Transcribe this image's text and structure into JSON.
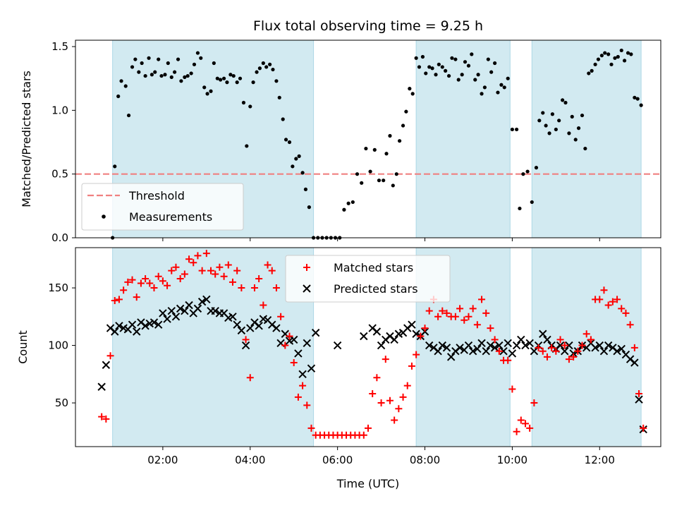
{
  "title": "Flux total observing time = 9.25 h",
  "x_axis": {
    "label": "Time (UTC)",
    "ticks": [
      2,
      4,
      6,
      8,
      10,
      12
    ],
    "tick_labels": [
      "02:00",
      "04:00",
      "06:00",
      "08:00",
      "10:00",
      "12:00"
    ]
  },
  "colors": {
    "shade": "#add8e6",
    "threshold": "#f08080",
    "matched": "#ff0000",
    "predicted": "#000000",
    "measurement": "#000000"
  },
  "chart_data": [
    {
      "type": "scatter",
      "panel": "top",
      "ylabel": "Matched/Predicted stars",
      "xlim": [
        0.0,
        13.4
      ],
      "ylim": [
        0.0,
        1.55
      ],
      "yticks": [
        0.0,
        0.5,
        1.0,
        1.5
      ],
      "ytick_labels": [
        "0.0",
        "0.5",
        "1.0",
        "1.5"
      ],
      "shaded_intervals": [
        [
          0.85,
          5.45
        ],
        [
          7.8,
          9.95
        ],
        [
          10.45,
          12.95
        ]
      ],
      "threshold": {
        "value": 0.5,
        "label": "Threshold",
        "style": "dashed"
      },
      "legend": {
        "position": "lower-left",
        "entries": [
          "Threshold",
          "Measurements"
        ]
      },
      "series": [
        {
          "name": "Measurements",
          "x": [
            0.85,
            0.9,
            0.98,
            1.05,
            1.15,
            1.22,
            1.3,
            1.37,
            1.45,
            1.52,
            1.6,
            1.68,
            1.75,
            1.82,
            1.9,
            1.97,
            2.05,
            2.12,
            2.2,
            2.27,
            2.35,
            2.42,
            2.5,
            2.57,
            2.65,
            2.72,
            2.8,
            2.87,
            2.95,
            3.02,
            3.1,
            3.17,
            3.25,
            3.32,
            3.4,
            3.47,
            3.55,
            3.62,
            3.7,
            3.77,
            3.85,
            3.92,
            4.0,
            4.07,
            4.15,
            4.22,
            4.3,
            4.37,
            4.45,
            4.52,
            4.6,
            4.67,
            4.75,
            4.82,
            4.9,
            4.97,
            5.05,
            5.12,
            5.2,
            5.27,
            5.35,
            5.45,
            5.55,
            5.65,
            5.75,
            5.85,
            5.95,
            6.05,
            6.15,
            6.25,
            6.35,
            6.45,
            6.55,
            6.65,
            6.75,
            6.85,
            6.95,
            7.05,
            7.12,
            7.2,
            7.27,
            7.35,
            7.42,
            7.5,
            7.57,
            7.65,
            7.72,
            7.8,
            7.87,
            7.95,
            8.02,
            8.1,
            8.17,
            8.25,
            8.32,
            8.4,
            8.47,
            8.55,
            8.62,
            8.7,
            8.77,
            8.85,
            8.92,
            9.0,
            9.07,
            9.15,
            9.22,
            9.3,
            9.37,
            9.45,
            9.52,
            9.6,
            9.67,
            9.75,
            9.82,
            9.9,
            10.0,
            10.1,
            10.17,
            10.25,
            10.35,
            10.45,
            10.55,
            10.62,
            10.7,
            10.77,
            10.85,
            10.92,
            11.0,
            11.07,
            11.15,
            11.22,
            11.3,
            11.37,
            11.45,
            11.52,
            11.6,
            11.67,
            11.75,
            11.82,
            11.9,
            11.97,
            12.05,
            12.12,
            12.2,
            12.27,
            12.35,
            12.42,
            12.5,
            12.57,
            12.65,
            12.72,
            12.8,
            12.87,
            12.95
          ],
          "values": [
            0.0,
            0.56,
            1.11,
            1.23,
            1.19,
            0.96,
            1.34,
            1.4,
            1.3,
            1.37,
            1.27,
            1.41,
            1.28,
            1.3,
            1.4,
            1.27,
            1.28,
            1.37,
            1.26,
            1.3,
            1.4,
            1.23,
            1.26,
            1.27,
            1.29,
            1.36,
            1.45,
            1.41,
            1.18,
            1.13,
            1.15,
            1.37,
            1.25,
            1.24,
            1.25,
            1.22,
            1.28,
            1.27,
            1.22,
            1.25,
            1.06,
            0.72,
            1.03,
            1.22,
            1.3,
            1.33,
            1.37,
            1.34,
            1.36,
            1.32,
            1.23,
            1.1,
            0.93,
            0.77,
            0.75,
            0.56,
            0.62,
            0.64,
            0.51,
            0.38,
            0.24,
            0.0,
            0.0,
            0.0,
            0.0,
            0.0,
            0.0,
            0.0,
            0.22,
            0.27,
            0.28,
            0.5,
            0.43,
            0.7,
            0.52,
            0.69,
            0.45,
            0.45,
            0.66,
            0.8,
            0.41,
            0.5,
            0.76,
            0.88,
            0.99,
            1.17,
            1.13,
            1.41,
            1.34,
            1.42,
            1.29,
            1.34,
            1.33,
            1.28,
            1.36,
            1.34,
            1.31,
            1.27,
            1.41,
            1.4,
            1.24,
            1.28,
            1.38,
            1.35,
            1.44,
            1.24,
            1.28,
            1.13,
            1.18,
            1.4,
            1.3,
            1.37,
            1.14,
            1.2,
            1.18,
            1.25,
            0.85,
            0.85,
            0.23,
            0.5,
            0.52,
            0.28,
            0.55,
            0.92,
            0.98,
            0.88,
            0.82,
            0.97,
            0.85,
            0.92,
            1.08,
            1.06,
            0.82,
            0.95,
            0.77,
            0.86,
            0.96,
            0.7,
            1.29,
            1.31,
            1.36,
            1.4,
            1.43,
            1.45,
            1.44,
            1.36,
            1.41,
            1.42,
            1.47,
            1.39,
            1.45,
            1.44,
            1.1,
            1.09,
            1.04
          ],
          "marker": "dot"
        }
      ]
    },
    {
      "type": "scatter",
      "panel": "bottom",
      "ylabel": "Count",
      "xlabel": "Time (UTC)",
      "xlim": [
        0.0,
        13.4
      ],
      "ylim": [
        12,
        185
      ],
      "yticks": [
        50,
        100,
        150
      ],
      "ytick_labels": [
        "50",
        "100",
        "150"
      ],
      "shaded_intervals": [
        [
          0.85,
          5.45
        ],
        [
          7.8,
          9.95
        ],
        [
          10.45,
          12.95
        ]
      ],
      "legend": {
        "position": "top-center",
        "entries": [
          "Matched stars",
          "Predicted stars"
        ]
      },
      "series": [
        {
          "name": "Matched stars",
          "marker": "plus",
          "x": [
            0.6,
            0.7,
            0.8,
            0.9,
            1.0,
            1.1,
            1.2,
            1.3,
            1.4,
            1.5,
            1.6,
            1.7,
            1.8,
            1.9,
            2.0,
            2.1,
            2.2,
            2.3,
            2.4,
            2.5,
            2.6,
            2.7,
            2.8,
            2.9,
            3.0,
            3.1,
            3.2,
            3.3,
            3.4,
            3.5,
            3.6,
            3.7,
            3.8,
            3.9,
            4.0,
            4.1,
            4.2,
            4.3,
            4.4,
            4.5,
            4.6,
            4.7,
            4.8,
            4.9,
            5.0,
            5.1,
            5.2,
            5.3,
            5.4,
            5.5,
            5.6,
            5.7,
            5.8,
            5.9,
            6.0,
            6.1,
            6.2,
            6.3,
            6.4,
            6.5,
            6.6,
            6.7,
            6.8,
            6.9,
            7.0,
            7.1,
            7.2,
            7.3,
            7.4,
            7.5,
            7.6,
            7.7,
            7.8,
            7.9,
            8.0,
            8.1,
            8.2,
            8.3,
            8.4,
            8.5,
            8.6,
            8.7,
            8.8,
            8.9,
            9.0,
            9.1,
            9.2,
            9.3,
            9.4,
            9.5,
            9.6,
            9.7,
            9.8,
            9.9,
            10.0,
            10.1,
            10.2,
            10.3,
            10.4,
            10.5,
            10.6,
            10.7,
            10.8,
            10.9,
            11.0,
            11.1,
            11.2,
            11.3,
            11.4,
            11.5,
            11.6,
            11.7,
            11.8,
            11.9,
            12.0,
            12.1,
            12.2,
            12.3,
            12.4,
            12.5,
            12.6,
            12.7,
            12.8,
            12.9,
            13.0
          ],
          "values": [
            38,
            36,
            91,
            139,
            140,
            148,
            155,
            157,
            142,
            154,
            158,
            154,
            150,
            160,
            156,
            152,
            165,
            168,
            158,
            162,
            175,
            172,
            178,
            165,
            180,
            165,
            162,
            168,
            160,
            170,
            155,
            165,
            150,
            105,
            72,
            150,
            158,
            135,
            170,
            165,
            150,
            125,
            100,
            108,
            85,
            55,
            65,
            48,
            28,
            22,
            22,
            22,
            22,
            22,
            22,
            22,
            22,
            22,
            22,
            22,
            22,
            28,
            58,
            72,
            50,
            88,
            52,
            35,
            45,
            55,
            65,
            82,
            92,
            108,
            115,
            130,
            140,
            125,
            130,
            128,
            125,
            125,
            132,
            122,
            125,
            132,
            118,
            140,
            128,
            115,
            105,
            95,
            87,
            87,
            62,
            25,
            35,
            32,
            28,
            50,
            98,
            95,
            90,
            98,
            95,
            105,
            100,
            88,
            90,
            95,
            100,
            110,
            105,
            140,
            140,
            148,
            135,
            138,
            140,
            132,
            128,
            118,
            98,
            58,
            28
          ]
        },
        {
          "name": "Predicted stars",
          "marker": "cross",
          "x": [
            0.6,
            0.7,
            0.8,
            0.9,
            1.0,
            1.1,
            1.2,
            1.3,
            1.4,
            1.5,
            1.6,
            1.7,
            1.8,
            1.9,
            2.0,
            2.1,
            2.2,
            2.3,
            2.4,
            2.5,
            2.6,
            2.7,
            2.8,
            2.9,
            3.0,
            3.1,
            3.2,
            3.3,
            3.4,
            3.5,
            3.6,
            3.7,
            3.8,
            3.9,
            4.0,
            4.1,
            4.2,
            4.3,
            4.4,
            4.5,
            4.6,
            4.7,
            4.8,
            4.9,
            5.0,
            5.1,
            5.2,
            5.3,
            5.4,
            5.5,
            6.0,
            6.6,
            6.8,
            6.9,
            7.0,
            7.1,
            7.2,
            7.3,
            7.4,
            7.5,
            7.6,
            7.7,
            7.8,
            7.9,
            8.0,
            8.1,
            8.2,
            8.3,
            8.4,
            8.5,
            8.6,
            8.7,
            8.8,
            8.9,
            9.0,
            9.1,
            9.2,
            9.3,
            9.4,
            9.5,
            9.6,
            9.7,
            9.8,
            9.9,
            10.0,
            10.1,
            10.2,
            10.3,
            10.4,
            10.5,
            10.6,
            10.7,
            10.8,
            10.9,
            11.0,
            11.1,
            11.2,
            11.3,
            11.4,
            11.5,
            11.6,
            11.7,
            11.8,
            11.9,
            12.0,
            12.1,
            12.2,
            12.3,
            12.4,
            12.5,
            12.6,
            12.7,
            12.8,
            12.9,
            13.0
          ],
          "values": [
            64,
            83,
            115,
            112,
            117,
            115,
            114,
            118,
            112,
            120,
            117,
            119,
            120,
            118,
            128,
            123,
            130,
            125,
            132,
            130,
            135,
            128,
            132,
            138,
            140,
            130,
            130,
            128,
            128,
            124,
            125,
            118,
            113,
            100,
            115,
            120,
            117,
            123,
            122,
            118,
            115,
            102,
            110,
            104,
            105,
            93,
            75,
            102,
            80,
            111,
            100,
            108,
            115,
            112,
            100,
            105,
            108,
            105,
            110,
            111,
            115,
            118,
            110,
            108,
            112,
            100,
            98,
            95,
            100,
            98,
            90,
            95,
            98,
            96,
            100,
            95,
            97,
            102,
            95,
            100,
            98,
            100,
            95,
            102,
            93,
            100,
            105,
            100,
            102,
            95,
            100,
            110,
            105,
            100,
            97,
            100,
            95,
            100,
            93,
            95,
            100,
            98,
            102,
            98,
            100,
            95,
            100,
            98,
            95,
            97,
            92,
            88,
            85,
            53,
            27
          ]
        }
      ]
    }
  ]
}
